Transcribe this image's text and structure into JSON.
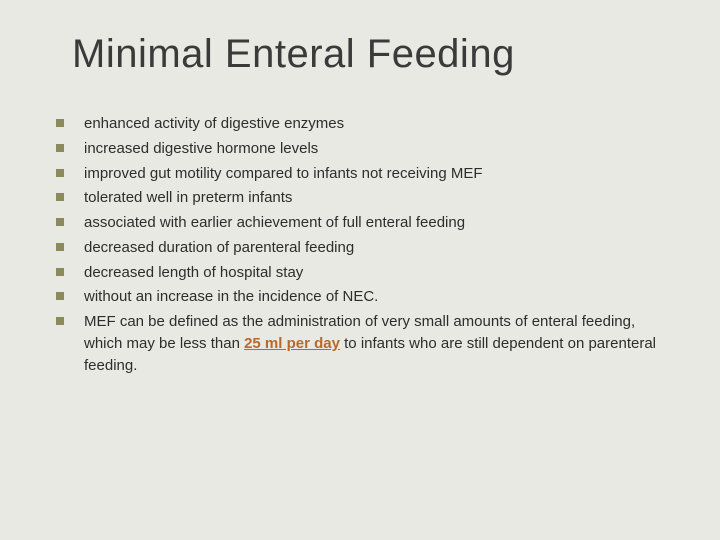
{
  "title": "Minimal Enteral Feeding",
  "colors": {
    "background": "#e8e9e3",
    "bullet_square": "#8a8a5c",
    "title_text": "#3a3a3a",
    "body_text": "#2d2d2d",
    "highlight": "#b86a2e"
  },
  "typography": {
    "title_fontsize_pt": 30,
    "body_fontsize_pt": 11,
    "font_family": "Verdana"
  },
  "bullets": [
    {
      "text": "enhanced activity of digestive enzymes"
    },
    {
      "text": " increased digestive hormone levels"
    },
    {
      "text": "improved gut motility compared to infants not receiving MEF"
    },
    {
      "text": "tolerated well in preterm infants"
    },
    {
      "text": " associated with earlier achievement of full enteral feeding"
    },
    {
      "text": " decreased duration of parenteral feeding"
    },
    {
      "text": "decreased length of hospital stay"
    },
    {
      "text": " without an increase in the incidence of NEC."
    },
    {
      "text_pre": "MEF can be defined as the administration of very small amounts of enteral feeding, which may be less than ",
      "highlight": "25 ml per day",
      "text_post": " to infants who are still dependent on parenteral feeding."
    }
  ]
}
